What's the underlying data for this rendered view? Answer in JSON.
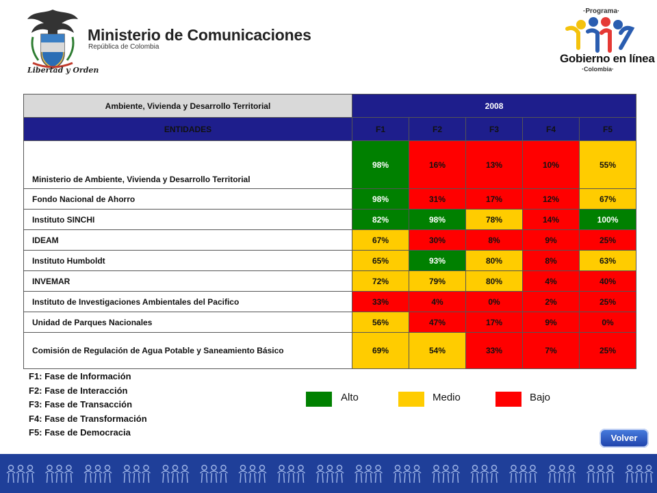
{
  "header": {
    "ministry_title": "Ministerio de Comunicaciones",
    "ministry_subtitle": "República de Colombia",
    "motto": "Libertad y Orden",
    "logo_left_icon": "coat-of-arms-icon",
    "gel_programa": "·Programa·",
    "gel_name": "Gobierno en línea",
    "gel_country": "·Colombia·",
    "logo_right_icon": "people-group-icon"
  },
  "table": {
    "domain": "Ambiente, Vivienda y Desarrollo Territorial",
    "year": "2008",
    "columns": [
      "ENTIDADES",
      "F1",
      "F2",
      "F3",
      "F4",
      "F5"
    ],
    "rows": [
      {
        "name": "Ministerio de Ambiente, Vivienda y Desarrollo Territorial",
        "values": [
          "98%",
          "16%",
          "13%",
          "10%",
          "55%"
        ],
        "levels": [
          "alto",
          "bajo",
          "bajo",
          "bajo",
          "medio"
        ]
      },
      {
        "name": "Fondo Nacional de Ahorro",
        "values": [
          "98%",
          "31%",
          "17%",
          "12%",
          "67%"
        ],
        "levels": [
          "alto",
          "bajo",
          "bajo",
          "bajo",
          "medio"
        ]
      },
      {
        "name": "Instituto SINCHI",
        "values": [
          "82%",
          "98%",
          "78%",
          "14%",
          "100%"
        ],
        "levels": [
          "alto",
          "alto",
          "medio",
          "bajo",
          "alto"
        ]
      },
      {
        "name": "IDEAM",
        "values": [
          "67%",
          "30%",
          "8%",
          "9%",
          "25%"
        ],
        "levels": [
          "medio",
          "bajo",
          "bajo",
          "bajo",
          "bajo"
        ]
      },
      {
        "name": "Instituto Humboldt",
        "values": [
          "65%",
          "93%",
          "80%",
          "8%",
          "63%"
        ],
        "levels": [
          "medio",
          "alto",
          "medio",
          "bajo",
          "medio"
        ]
      },
      {
        "name": "INVEMAR",
        "values": [
          "72%",
          "79%",
          "80%",
          "4%",
          "40%"
        ],
        "levels": [
          "medio",
          "medio",
          "medio",
          "bajo",
          "bajo"
        ]
      },
      {
        "name": "Instituto de Investigaciones Ambientales del Pacifico",
        "values": [
          "33%",
          "4%",
          "0%",
          "2%",
          "25%"
        ],
        "levels": [
          "bajo",
          "bajo",
          "bajo",
          "bajo",
          "bajo"
        ]
      },
      {
        "name": "Unidad de Parques Nacionales",
        "values": [
          "56%",
          "47%",
          "17%",
          "9%",
          "0%"
        ],
        "levels": [
          "medio",
          "bajo",
          "bajo",
          "bajo",
          "bajo"
        ]
      },
      {
        "name": "Comisión de Regulación de Agua Potable y Saneamiento Básico",
        "values": [
          "69%",
          "54%",
          "33%",
          "7%",
          "25%"
        ],
        "levels": [
          "medio",
          "medio",
          "bajo",
          "bajo",
          "bajo"
        ]
      }
    ]
  },
  "notes": [
    "F1: Fase de Información",
    "F2: Fase de Interacción",
    "F3: Fase de Transacción",
    "F4: Fase de Transformación",
    "F5: Fase de Democracia"
  ],
  "legend": [
    {
      "label": "Alto",
      "color": "#008000"
    },
    {
      "label": "Medio",
      "color": "#ffcc00"
    },
    {
      "label": "Bajo",
      "color": "#ff0000"
    }
  ],
  "volver_label": "Volver",
  "colors": {
    "header_blue": "#1e1e8c",
    "footer_blue": "#1f3f99",
    "alto": "#008000",
    "medio": "#ffcc00",
    "bajo": "#ff0000"
  }
}
